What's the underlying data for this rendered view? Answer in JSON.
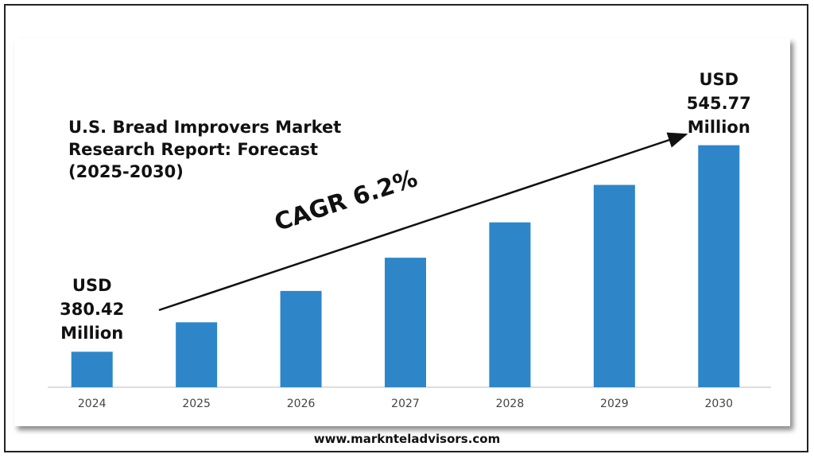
{
  "chart_data": {
    "type": "bar",
    "title": "U.S. Bread Improvers Market Research Report: Forecast (2025-2030)",
    "annotation": "CAGR 6.2%",
    "source": "www.marknteladvisors.com",
    "categories": [
      "2024",
      "2025",
      "2026",
      "2027",
      "2028",
      "2029",
      "2030"
    ],
    "values": [
      380.42,
      404.0,
      429.1,
      455.7,
      484.0,
      514.0,
      545.77
    ],
    "value_labels": [
      "USD 380.42 Million",
      null,
      null,
      null,
      null,
      null,
      "USD 545.77 Million"
    ],
    "color": "#2e86c8",
    "ylim": [
      352,
      550
    ]
  }
}
